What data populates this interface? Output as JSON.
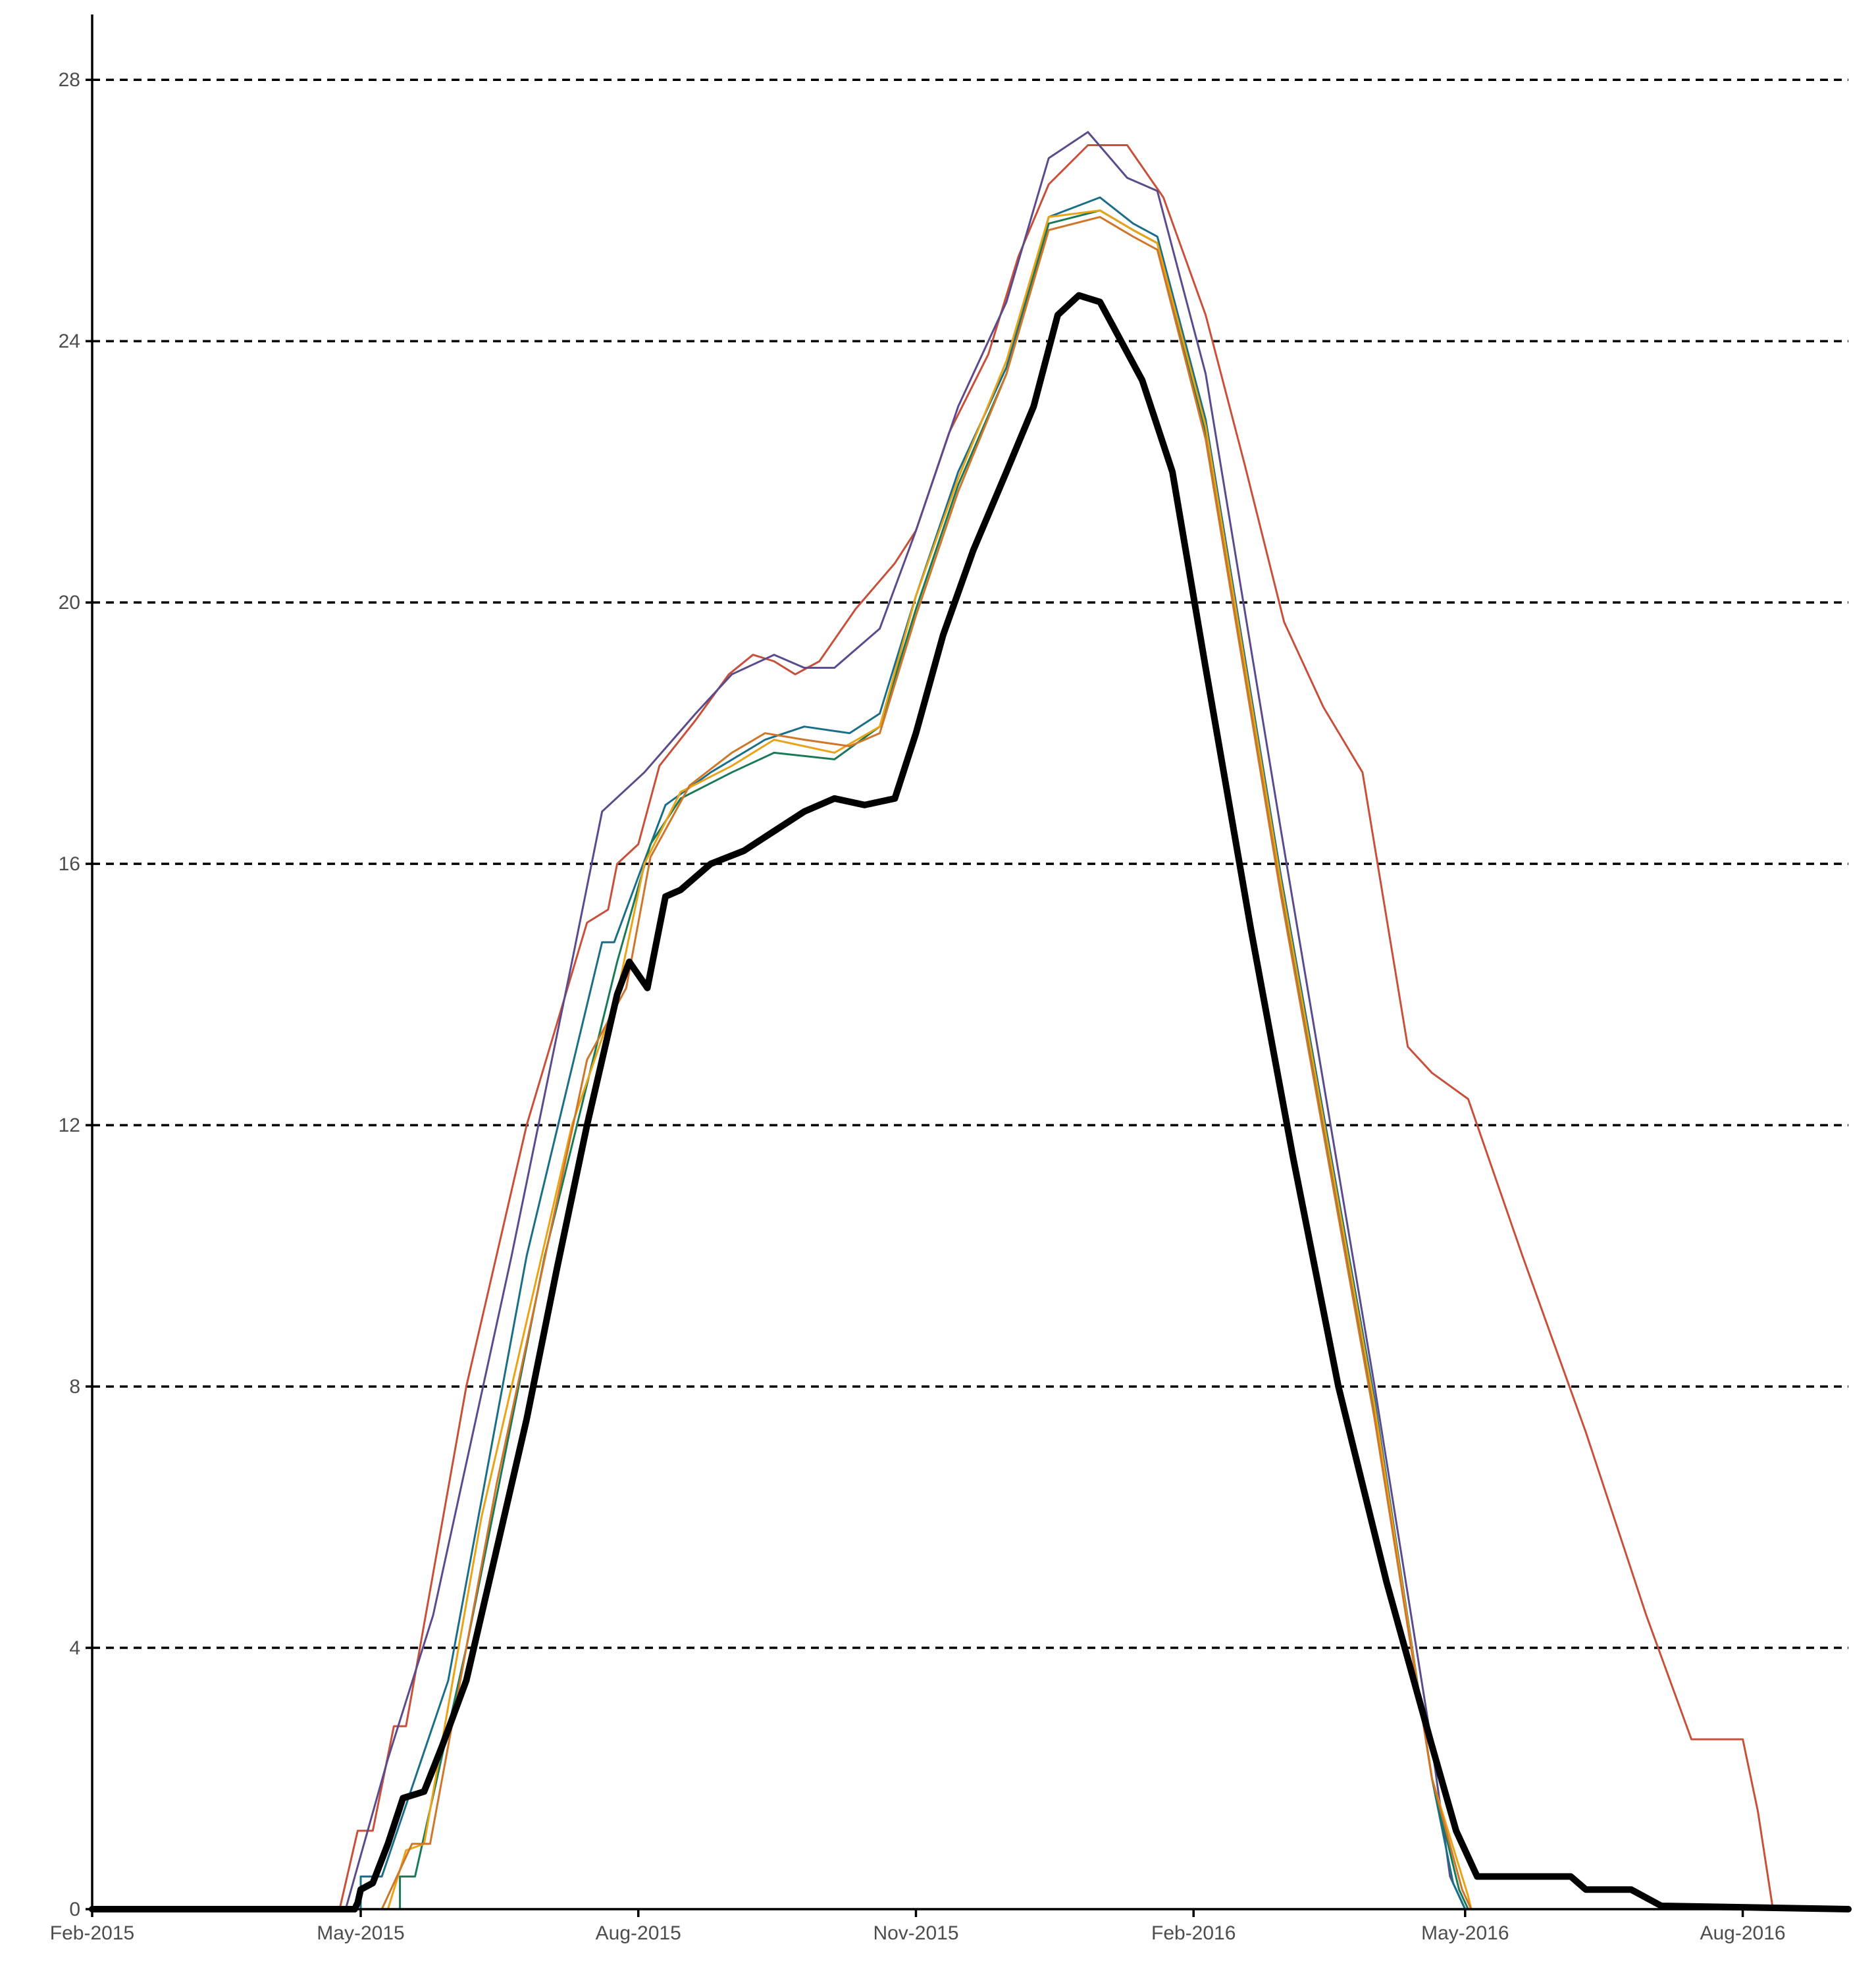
{
  "chart_data": {
    "type": "line",
    "title": "",
    "xlabel": "",
    "ylabel": "",
    "xlim": [
      "2015-02-01",
      "2016-09-05"
    ],
    "ylim": [
      0,
      29
    ],
    "y_ticks": [
      0,
      4,
      8,
      12,
      16,
      20,
      24,
      28
    ],
    "x_ticks": [
      {
        "date": "2015-02-01",
        "label": "Feb-2015"
      },
      {
        "date": "2015-05-01",
        "label": "May-2015"
      },
      {
        "date": "2015-08-01",
        "label": "Aug-2015"
      },
      {
        "date": "2015-11-01",
        "label": "Nov-2015"
      },
      {
        "date": "2016-02-01",
        "label": "Feb-2016"
      },
      {
        "date": "2016-05-01",
        "label": "May-2016"
      },
      {
        "date": "2016-08-01",
        "label": "Aug-2016"
      }
    ],
    "grid": {
      "horizontal": true,
      "vertical": false,
      "style": "dashed"
    },
    "legend": "none",
    "series": [
      {
        "color": "#c8503a",
        "line_width": 3,
        "points": [
          [
            "2015-02-01",
            0
          ],
          [
            "2015-04-24",
            0
          ],
          [
            "2015-04-30",
            1.2
          ],
          [
            "2015-05-05",
            1.2
          ],
          [
            "2015-05-12",
            2.8
          ],
          [
            "2015-05-16",
            2.8
          ],
          [
            "2015-06-05",
            8
          ],
          [
            "2015-06-25",
            12
          ],
          [
            "2015-07-15",
            15.1
          ],
          [
            "2015-07-22",
            15.3
          ],
          [
            "2015-07-25",
            16.0
          ],
          [
            "2015-08-01",
            16.3
          ],
          [
            "2015-08-08",
            17.5
          ],
          [
            "2015-08-20",
            18.2
          ],
          [
            "2015-08-31",
            18.9
          ],
          [
            "2015-09-08",
            19.2
          ],
          [
            "2015-09-15",
            19.1
          ],
          [
            "2015-09-22",
            18.9
          ],
          [
            "2015-09-30",
            19.1
          ],
          [
            "2015-10-12",
            19.9
          ],
          [
            "2015-10-25",
            20.6
          ],
          [
            "2015-11-01",
            21.1
          ],
          [
            "2015-11-12",
            22.6
          ],
          [
            "2015-11-25",
            23.8
          ],
          [
            "2015-12-05",
            25.3
          ],
          [
            "2015-12-15",
            26.4
          ],
          [
            "2015-12-28",
            27.0
          ],
          [
            "2016-01-10",
            27.0
          ],
          [
            "2016-01-22",
            26.2
          ],
          [
            "2016-02-05",
            24.4
          ],
          [
            "2016-02-18",
            22.1
          ],
          [
            "2016-03-02",
            19.7
          ],
          [
            "2016-03-15",
            18.4
          ],
          [
            "2016-03-28",
            17.4
          ],
          [
            "2016-04-12",
            13.2
          ],
          [
            "2016-04-20",
            12.8
          ],
          [
            "2016-05-02",
            12.4
          ],
          [
            "2016-05-20",
            10.0
          ],
          [
            "2016-06-10",
            7.3
          ],
          [
            "2016-06-30",
            4.5
          ],
          [
            "2016-07-15",
            2.6
          ],
          [
            "2016-07-30",
            2.6
          ],
          [
            "2016-08-01",
            2.6
          ],
          [
            "2016-08-06",
            1.5
          ],
          [
            "2016-08-11",
            0
          ],
          [
            "2016-09-05",
            0
          ]
        ]
      },
      {
        "color": "#5b4a8c",
        "line_width": 3,
        "points": [
          [
            "2015-02-01",
            0
          ],
          [
            "2015-04-26",
            0
          ],
          [
            "2015-05-10",
            2.3
          ],
          [
            "2015-05-25",
            4.5
          ],
          [
            "2015-06-20",
            10
          ],
          [
            "2015-07-10",
            14.5
          ],
          [
            "2015-07-20",
            16.8
          ],
          [
            "2015-08-03",
            17.4
          ],
          [
            "2015-08-20",
            18.3
          ],
          [
            "2015-09-01",
            18.9
          ],
          [
            "2015-09-15",
            19.2
          ],
          [
            "2015-09-25",
            19.0
          ],
          [
            "2015-10-05",
            19.0
          ],
          [
            "2015-10-20",
            19.6
          ],
          [
            "2015-11-01",
            21.1
          ],
          [
            "2015-11-15",
            23.0
          ],
          [
            "2015-12-01",
            24.6
          ],
          [
            "2015-12-15",
            26.8
          ],
          [
            "2015-12-28",
            27.2
          ],
          [
            "2016-01-10",
            26.5
          ],
          [
            "2016-01-20",
            26.3
          ],
          [
            "2016-02-05",
            23.5
          ],
          [
            "2016-03-01",
            16.5
          ],
          [
            "2016-04-01",
            8.0
          ],
          [
            "2016-04-20",
            2.5
          ],
          [
            "2016-04-26",
            0.5
          ],
          [
            "2016-05-01",
            0
          ],
          [
            "2016-09-05",
            0
          ]
        ]
      },
      {
        "color": "#1b6e88",
        "line_width": 3,
        "points": [
          [
            "2015-02-01",
            0
          ],
          [
            "2015-05-01",
            0
          ],
          [
            "2015-05-01",
            0.5
          ],
          [
            "2015-05-08",
            0.5
          ],
          [
            "2015-05-30",
            3.5
          ],
          [
            "2015-06-25",
            10
          ],
          [
            "2015-07-20",
            14.8
          ],
          [
            "2015-07-24",
            14.8
          ],
          [
            "2015-08-01",
            15.8
          ],
          [
            "2015-08-10",
            16.9
          ],
          [
            "2015-08-25",
            17.4
          ],
          [
            "2015-09-12",
            17.9
          ],
          [
            "2015-09-25",
            18.1
          ],
          [
            "2015-10-10",
            18.0
          ],
          [
            "2015-10-20",
            18.3
          ],
          [
            "2015-11-01",
            20.1
          ],
          [
            "2015-11-15",
            22.0
          ],
          [
            "2015-12-01",
            23.6
          ],
          [
            "2015-12-15",
            25.9
          ],
          [
            "2016-01-01",
            26.2
          ],
          [
            "2016-01-12",
            25.8
          ],
          [
            "2016-01-20",
            25.6
          ],
          [
            "2016-02-05",
            22.8
          ],
          [
            "2016-03-01",
            15.8
          ],
          [
            "2016-04-01",
            7.8
          ],
          [
            "2016-04-20",
            2.0
          ],
          [
            "2016-04-27",
            0.4
          ],
          [
            "2016-05-01",
            0
          ],
          [
            "2016-09-05",
            0
          ]
        ]
      },
      {
        "color": "#1a7a55",
        "line_width": 3,
        "points": [
          [
            "2015-02-01",
            0
          ],
          [
            "2015-05-14",
            0
          ],
          [
            "2015-05-14",
            0.5
          ],
          [
            "2015-05-19",
            0.5
          ],
          [
            "2015-06-05",
            4
          ],
          [
            "2015-07-01",
            10
          ],
          [
            "2015-07-25",
            14.5
          ],
          [
            "2015-08-05",
            16.3
          ],
          [
            "2015-08-15",
            17.0
          ],
          [
            "2015-09-01",
            17.4
          ],
          [
            "2015-09-15",
            17.7
          ],
          [
            "2015-10-05",
            17.6
          ],
          [
            "2015-10-20",
            18.1
          ],
          [
            "2015-11-01",
            19.9
          ],
          [
            "2015-11-15",
            21.8
          ],
          [
            "2015-12-01",
            23.5
          ],
          [
            "2015-12-15",
            25.8
          ],
          [
            "2016-01-01",
            26.0
          ],
          [
            "2016-01-12",
            25.7
          ],
          [
            "2016-01-20",
            25.5
          ],
          [
            "2016-02-05",
            22.6
          ],
          [
            "2016-03-01",
            15.6
          ],
          [
            "2016-04-01",
            7.6
          ],
          [
            "2016-04-20",
            2.0
          ],
          [
            "2016-04-29",
            0.3
          ],
          [
            "2016-05-02",
            0
          ],
          [
            "2016-09-05",
            0
          ]
        ]
      },
      {
        "color": "#e8a317",
        "line_width": 3,
        "points": [
          [
            "2015-02-01",
            0
          ],
          [
            "2015-04-30",
            0
          ],
          [
            "2015-05-10",
            0
          ],
          [
            "2015-05-16",
            0.9
          ],
          [
            "2015-05-22",
            1.0
          ],
          [
            "2015-06-10",
            6
          ],
          [
            "2015-07-10",
            12
          ],
          [
            "2015-07-25",
            14.0
          ],
          [
            "2015-08-03",
            16.0
          ],
          [
            "2015-08-15",
            17.1
          ],
          [
            "2015-09-01",
            17.5
          ],
          [
            "2015-09-15",
            17.9
          ],
          [
            "2015-10-05",
            17.7
          ],
          [
            "2015-10-20",
            18.1
          ],
          [
            "2015-11-01",
            20.1
          ],
          [
            "2015-11-15",
            21.9
          ],
          [
            "2015-12-01",
            23.7
          ],
          [
            "2015-12-15",
            25.9
          ],
          [
            "2016-01-01",
            26.0
          ],
          [
            "2016-01-12",
            25.7
          ],
          [
            "2016-01-20",
            25.5
          ],
          [
            "2016-02-05",
            22.7
          ],
          [
            "2016-03-01",
            15.7
          ],
          [
            "2016-04-01",
            7.7
          ],
          [
            "2016-04-20",
            2.0
          ],
          [
            "2016-05-02",
            0.2
          ],
          [
            "2016-05-03",
            0
          ],
          [
            "2016-09-05",
            0
          ]
        ]
      },
      {
        "color": "#d0762a",
        "line_width": 3,
        "points": [
          [
            "2015-02-01",
            0
          ],
          [
            "2015-05-02",
            0
          ],
          [
            "2015-05-08",
            0
          ],
          [
            "2015-05-18",
            1.0
          ],
          [
            "2015-05-24",
            1.0
          ],
          [
            "2015-06-15",
            6.5
          ],
          [
            "2015-07-15",
            13
          ],
          [
            "2015-07-28",
            14.1
          ],
          [
            "2015-08-05",
            16.1
          ],
          [
            "2015-08-18",
            17.2
          ],
          [
            "2015-09-01",
            17.7
          ],
          [
            "2015-09-12",
            18.0
          ],
          [
            "2015-09-25",
            17.9
          ],
          [
            "2015-10-10",
            17.8
          ],
          [
            "2015-10-20",
            18.0
          ],
          [
            "2015-11-01",
            19.8
          ],
          [
            "2015-11-15",
            21.7
          ],
          [
            "2015-12-01",
            23.5
          ],
          [
            "2015-12-15",
            25.7
          ],
          [
            "2016-01-01",
            25.9
          ],
          [
            "2016-01-12",
            25.6
          ],
          [
            "2016-01-20",
            25.4
          ],
          [
            "2016-02-05",
            22.5
          ],
          [
            "2016-03-01",
            15.5
          ],
          [
            "2016-04-01",
            7.5
          ],
          [
            "2016-04-20",
            2.0
          ],
          [
            "2016-04-30",
            0.3
          ],
          [
            "2016-05-03",
            0
          ],
          [
            "2016-09-05",
            0
          ]
        ]
      },
      {
        "color": "#000000",
        "line_width": 10,
        "points": [
          [
            "2015-02-01",
            0
          ],
          [
            "2015-04-29",
            0
          ],
          [
            "2015-04-30",
            0.1
          ],
          [
            "2015-05-01",
            0.3
          ],
          [
            "2015-05-05",
            0.4
          ],
          [
            "2015-05-10",
            1.0
          ],
          [
            "2015-05-15",
            1.7
          ],
          [
            "2015-05-22",
            1.8
          ],
          [
            "2015-05-28",
            2.5
          ],
          [
            "2015-06-05",
            3.5
          ],
          [
            "2015-06-15",
            5.5
          ],
          [
            "2015-06-25",
            7.5
          ],
          [
            "2015-07-05",
            9.8
          ],
          [
            "2015-07-15",
            12.0
          ],
          [
            "2015-07-25",
            14.0
          ],
          [
            "2015-07-29",
            14.5
          ],
          [
            "2015-08-04",
            14.1
          ],
          [
            "2015-08-10",
            15.5
          ],
          [
            "2015-08-15",
            15.6
          ],
          [
            "2015-08-25",
            16.0
          ],
          [
            "2015-09-05",
            16.2
          ],
          [
            "2015-09-15",
            16.5
          ],
          [
            "2015-09-25",
            16.8
          ],
          [
            "2015-10-05",
            17.0
          ],
          [
            "2015-10-15",
            16.9
          ],
          [
            "2015-10-25",
            17.0
          ],
          [
            "2015-11-01",
            18.0
          ],
          [
            "2015-11-10",
            19.5
          ],
          [
            "2015-11-20",
            20.8
          ],
          [
            "2015-12-01",
            22.0
          ],
          [
            "2015-12-10",
            23.0
          ],
          [
            "2015-12-18",
            24.4
          ],
          [
            "2015-12-25",
            24.7
          ],
          [
            "2016-01-01",
            24.6
          ],
          [
            "2016-01-08",
            24.0
          ],
          [
            "2016-01-15",
            23.4
          ],
          [
            "2016-01-25",
            22.0
          ],
          [
            "2016-02-05",
            19.0
          ],
          [
            "2016-02-20",
            15.0
          ],
          [
            "2016-03-05",
            11.5
          ],
          [
            "2016-03-20",
            8.0
          ],
          [
            "2016-04-05",
            5.0
          ],
          [
            "2016-04-20",
            2.5
          ],
          [
            "2016-04-28",
            1.2
          ],
          [
            "2016-05-05",
            0.5
          ],
          [
            "2016-06-05",
            0.5
          ],
          [
            "2016-06-10",
            0.3
          ],
          [
            "2016-06-25",
            0.3
          ],
          [
            "2016-07-05",
            0.05
          ],
          [
            "2016-09-05",
            0
          ]
        ]
      }
    ]
  }
}
